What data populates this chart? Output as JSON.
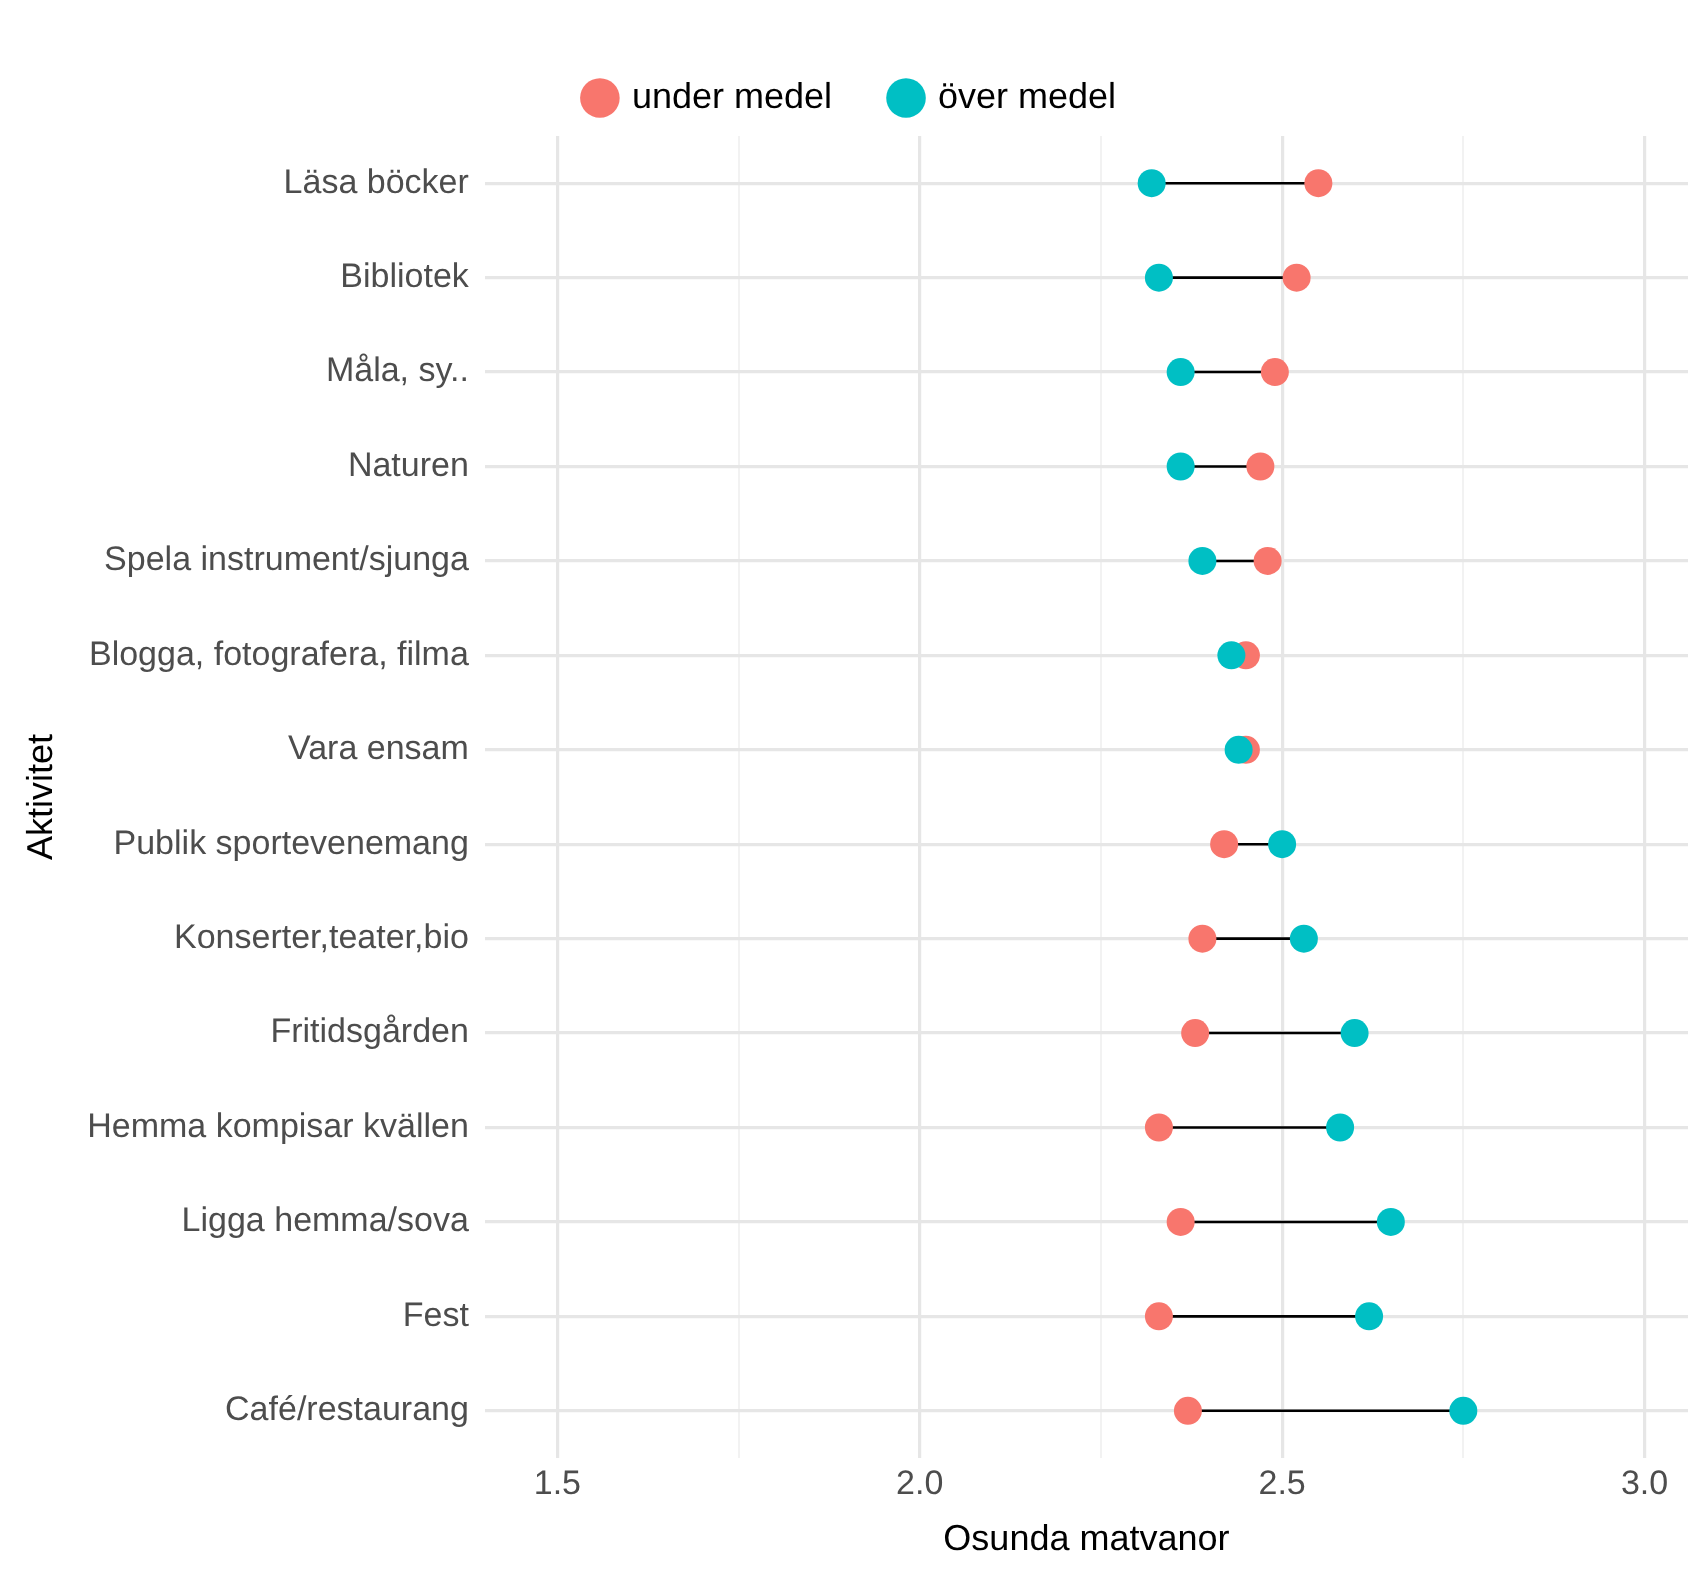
{
  "chart_data": {
    "type": "scatter",
    "orientation": "horizontal",
    "xlabel": "Osunda matvanor",
    "ylabel": "Aktivitet",
    "legend": "top",
    "grid": true,
    "marker": "circle",
    "categories": [
      "Läsa böcker",
      "Bibliotek",
      "Måla, sy..",
      "Naturen",
      "Spela instrument/sjunga",
      "Blogga, fotografera, filma",
      "Vara ensam",
      "Publik sportevenemang",
      "Konserter,teater,bio",
      "Fritidsgården",
      "Hemma kompisar kvällen",
      "Ligga hemma/sova",
      "Fest",
      "Café/restaurang"
    ],
    "xlim": [
      1.4,
      3.06
    ],
    "xticks": [
      {
        "value": 1.5,
        "label": "1.5"
      },
      {
        "value": 1.75,
        "label": null
      },
      {
        "value": 2,
        "label": "2.0"
      },
      {
        "value": 2.25,
        "label": null
      },
      {
        "value": 2.5,
        "label": "2.5"
      },
      {
        "value": 2.75,
        "label": null
      },
      {
        "value": 3,
        "label": "3.0"
      }
    ],
    "series": [
      {
        "name": "under medel",
        "color": "#f8766d",
        "values": [
          2.55,
          2.52,
          2.49,
          2.47,
          2.48,
          2.45,
          2.45,
          2.42,
          2.39,
          2.38,
          2.33,
          2.36,
          2.33,
          2.37
        ]
      },
      {
        "name": "över medel",
        "color": "#00bfc4",
        "values": [
          2.32,
          2.33,
          2.36,
          2.36,
          2.39,
          2.43,
          2.44,
          2.5,
          2.53,
          2.6,
          2.58,
          2.65,
          2.62,
          2.75
        ]
      }
    ]
  }
}
